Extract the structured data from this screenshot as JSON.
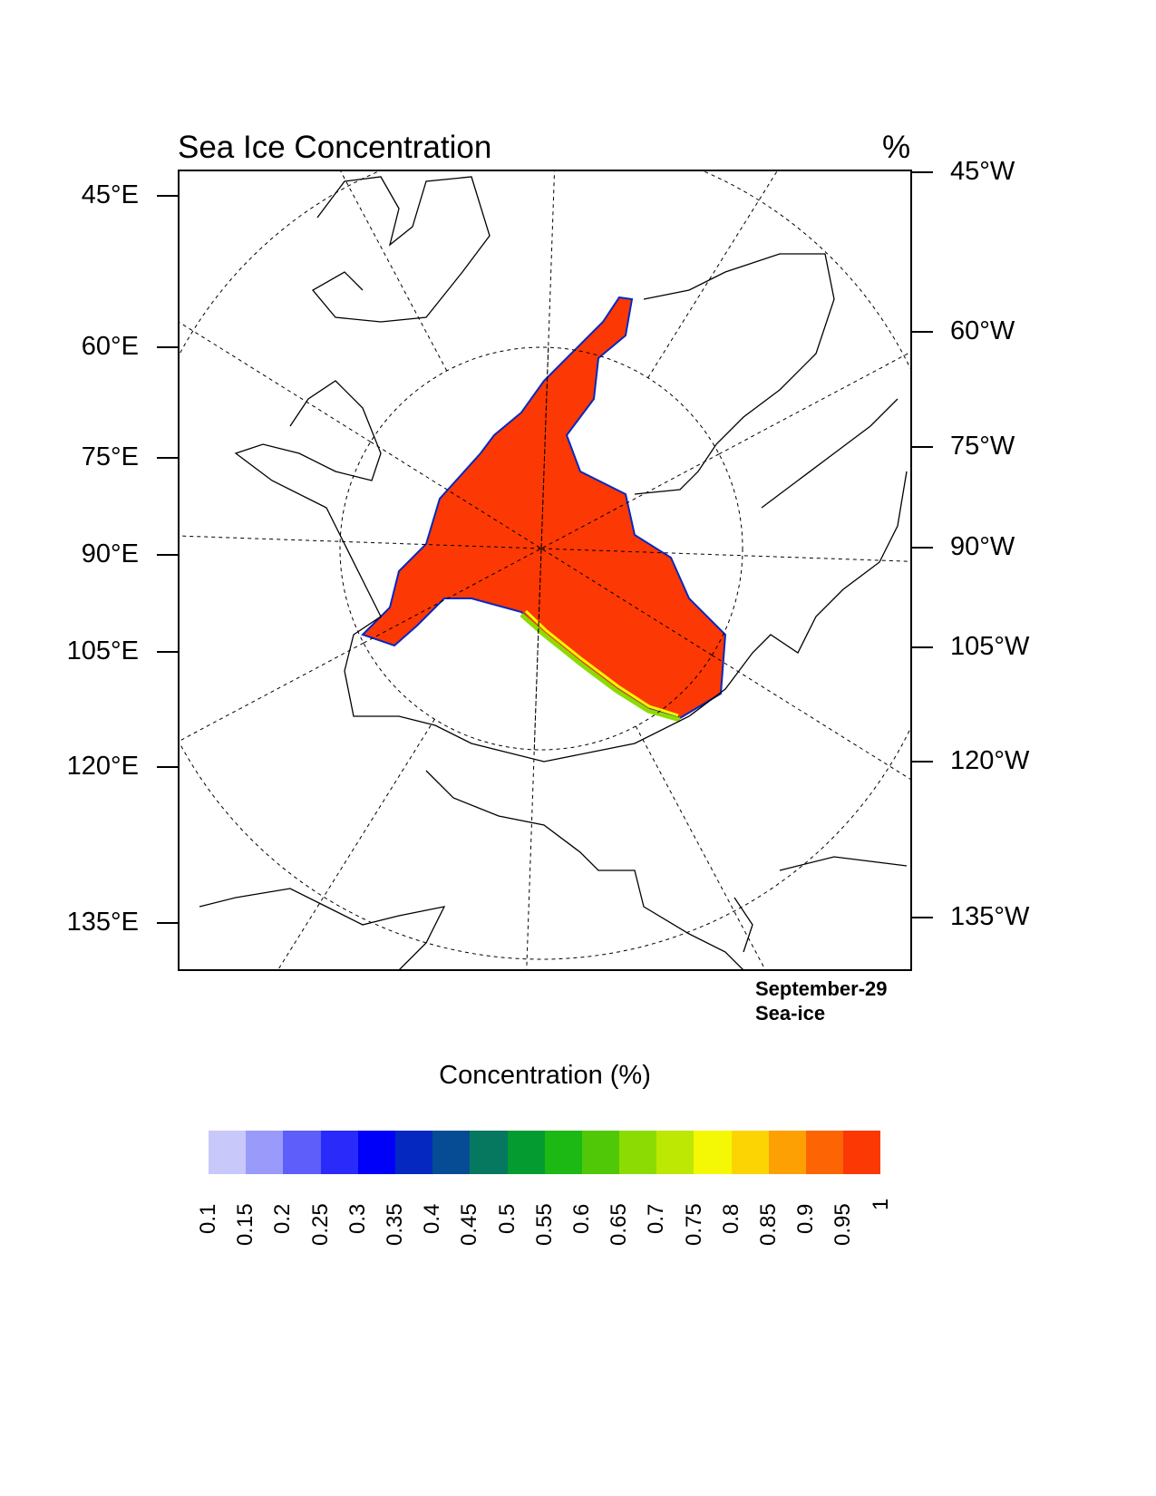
{
  "title": "Sea Ice Concentration",
  "units": "%",
  "left_lon_labels": [
    "45°E",
    "60°E",
    "75°E",
    "90°E",
    "105°E",
    "120°E",
    "135°E"
  ],
  "right_lon_labels": [
    "45°W",
    "60°W",
    "75°W",
    "90°W",
    "105°W",
    "120°W",
    "135°W"
  ],
  "date_label": "September-29",
  "variable_label": "Sea-ice",
  "colorbar": {
    "title": "Concentration (%)",
    "labels": [
      "0.1",
      "0.15",
      "0.2",
      "0.25",
      "0.3",
      "0.35",
      "0.4",
      "0.45",
      "0.5",
      "0.55",
      "0.6",
      "0.65",
      "0.7",
      "0.75",
      "0.8",
      "0.85",
      "0.9",
      "0.95",
      "1"
    ],
    "colors": [
      "#c8c8fa",
      "#9a9afa",
      "#5e5efa",
      "#2a2afa",
      "#0000fa",
      "#0428c0",
      "#064c94",
      "#067860",
      "#049c30",
      "#1cb814",
      "#50c808",
      "#8cdc04",
      "#bce804",
      "#f4f804",
      "#fcd404",
      "#fca004",
      "#fc6404",
      "#fc3804"
    ]
  },
  "map": {
    "projection": "north polar stereographic",
    "field_color": "#fc3804",
    "field_value_range": "0.95–1"
  }
}
